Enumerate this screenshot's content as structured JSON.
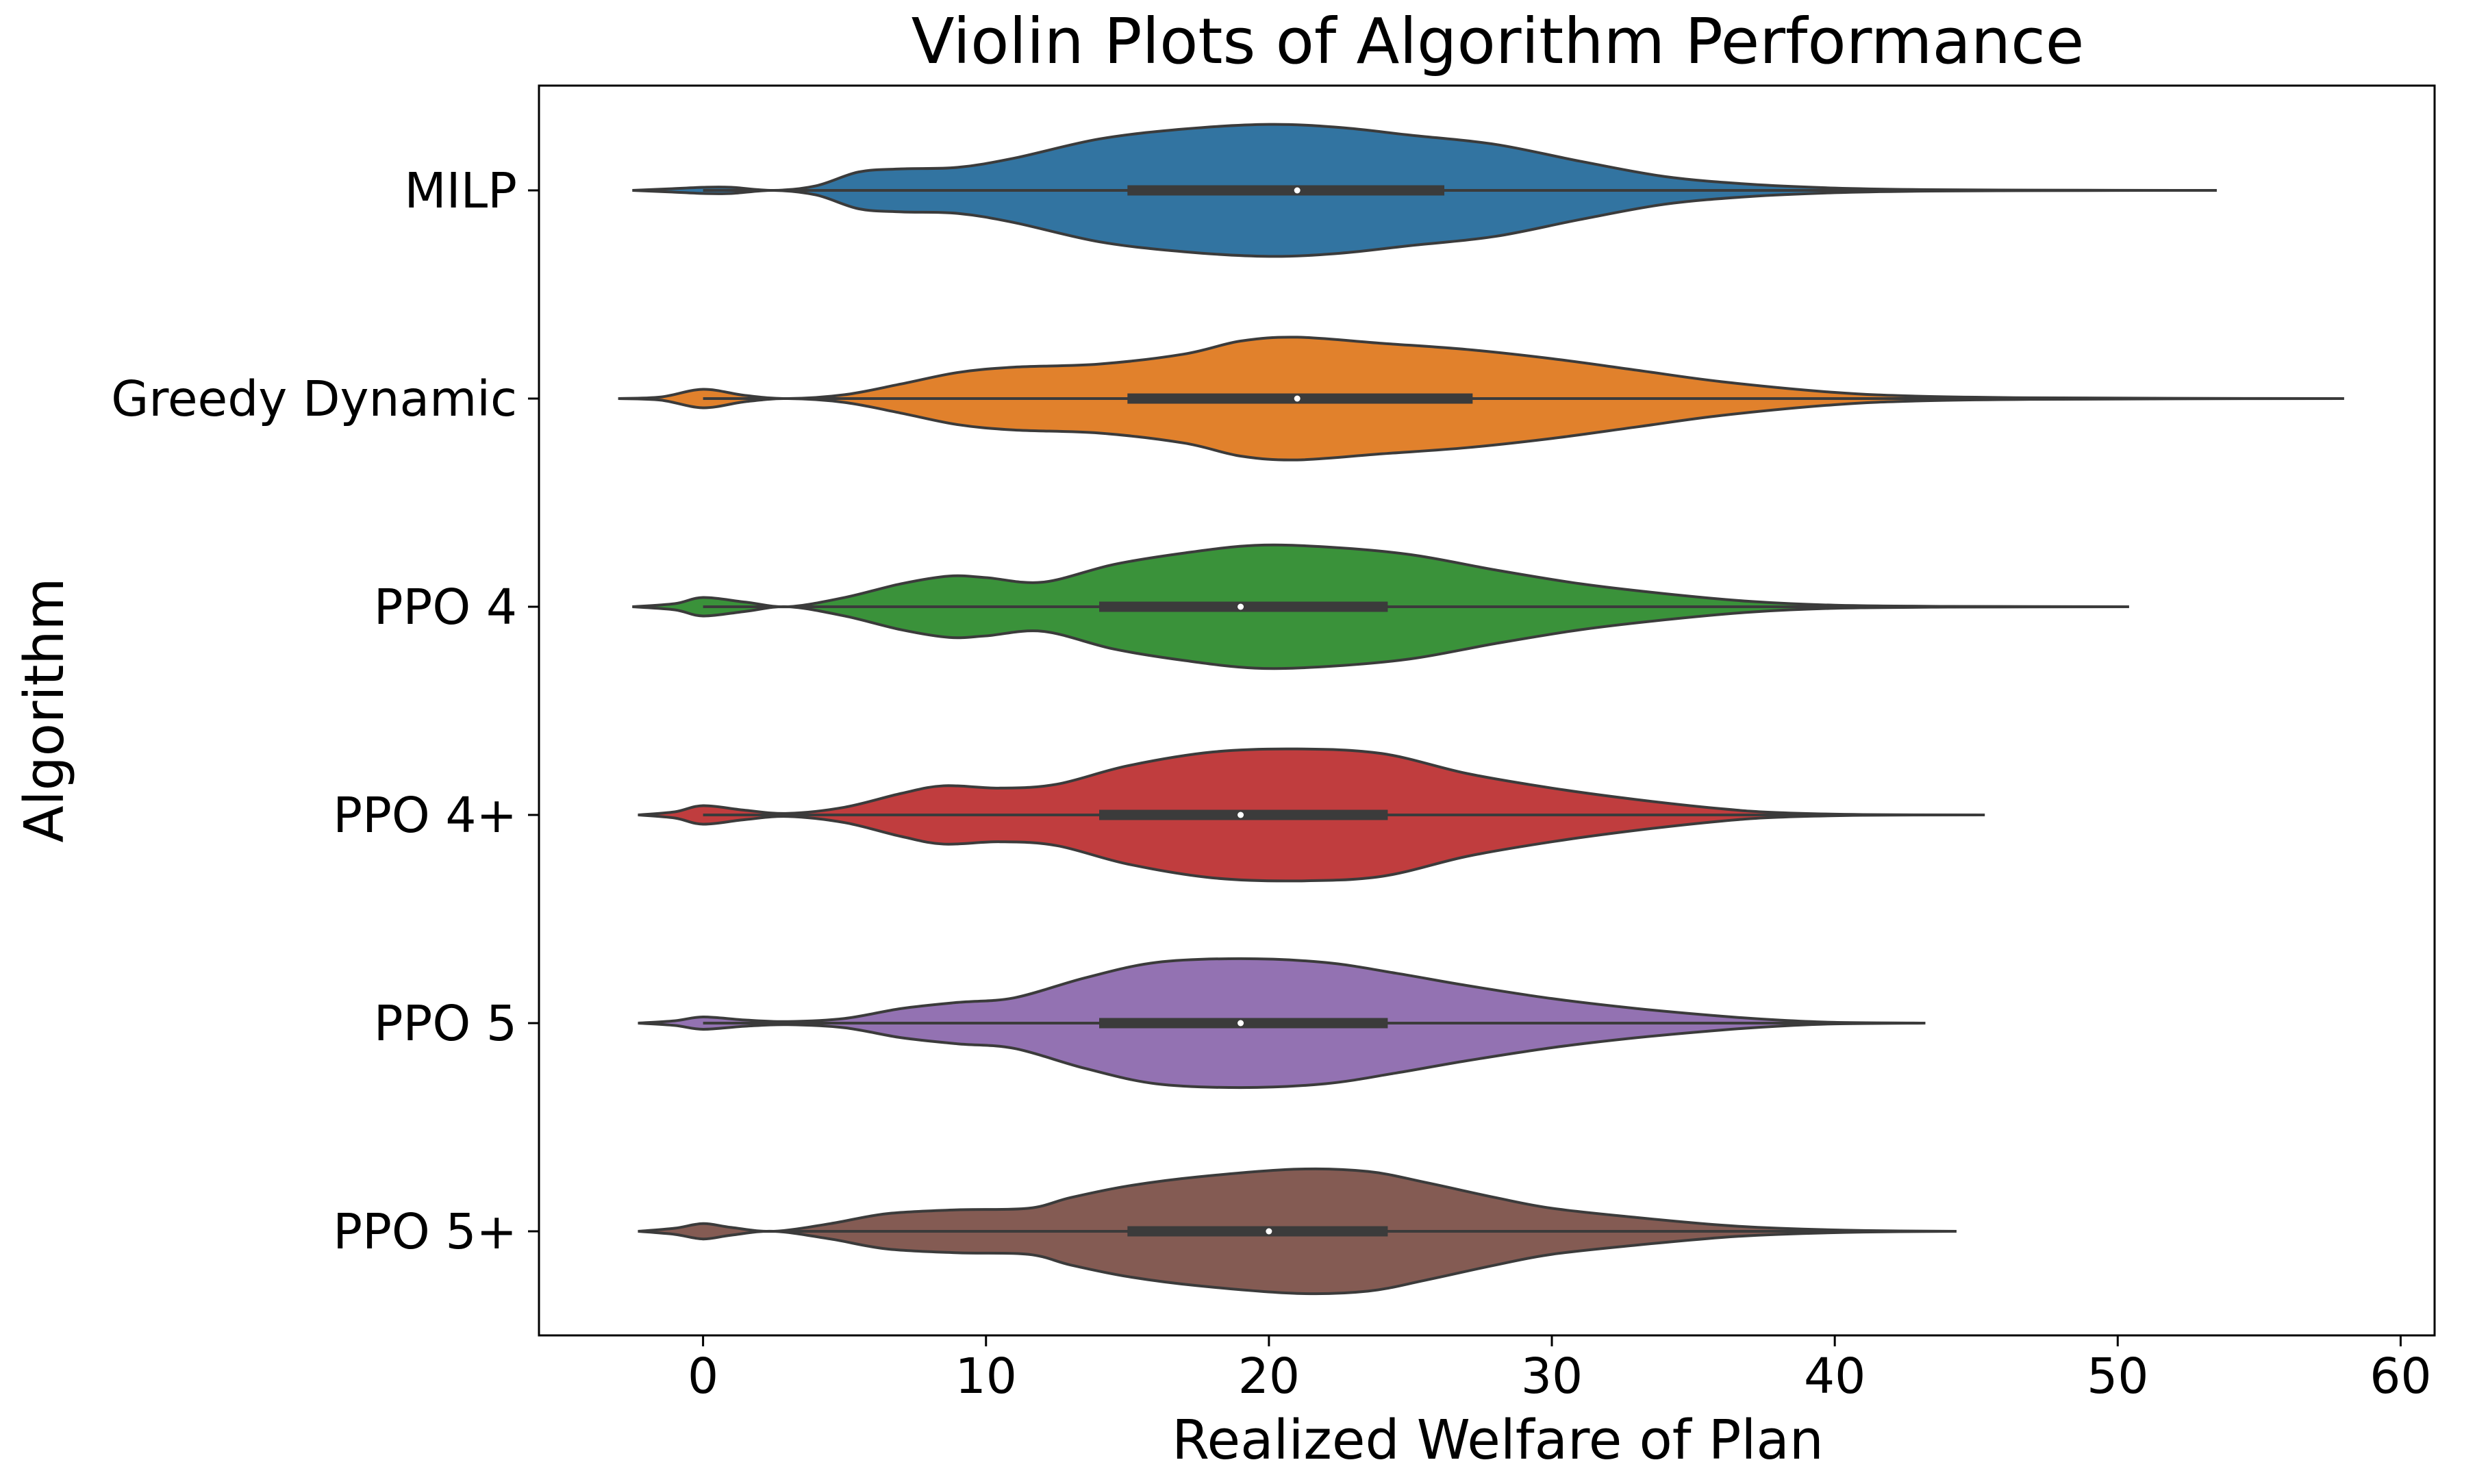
{
  "chart_data": {
    "type": "violin",
    "orientation": "horizontal",
    "title": "Violin Plots of Algorithm Performance",
    "xlabel": "Realized Welfare of Plan",
    "ylabel": "Algorithm",
    "xlim": [
      -5.8,
      61.2
    ],
    "xticks": [
      0,
      10,
      20,
      30,
      40,
      50,
      60
    ],
    "grid": false,
    "categories": [
      "MILP",
      "Greedy Dynamic",
      "PPO 4",
      "PPO 4+",
      "PPO 5",
      "PPO 5+"
    ],
    "series": [
      {
        "name": "MILP",
        "color": "#3274a1",
        "min": 0,
        "q1": 15,
        "median": 21,
        "q3": 26.2,
        "max": 53.5,
        "density": [
          [
            -2.5,
            0.0
          ],
          [
            -1.2,
            0.02
          ],
          [
            0.0,
            0.04
          ],
          [
            1.0,
            0.04
          ],
          [
            2.5,
            0.0
          ],
          [
            4.0,
            0.06
          ],
          [
            5.5,
            0.24
          ],
          [
            7.0,
            0.28
          ],
          [
            9.0,
            0.3
          ],
          [
            11.0,
            0.42
          ],
          [
            14.0,
            0.67
          ],
          [
            17.0,
            0.8
          ],
          [
            20.0,
            0.86
          ],
          [
            22.5,
            0.82
          ],
          [
            25.0,
            0.72
          ],
          [
            28.0,
            0.6
          ],
          [
            31.0,
            0.38
          ],
          [
            34.0,
            0.18
          ],
          [
            37.0,
            0.08
          ],
          [
            40.0,
            0.03
          ],
          [
            43.0,
            0.01
          ],
          [
            47.0,
            0.003
          ],
          [
            53.5,
            0.0
          ]
        ]
      },
      {
        "name": "Greedy Dynamic",
        "color": "#e1812c",
        "min": 0,
        "q1": 15,
        "median": 21,
        "q3": 27.2,
        "max": 58,
        "density": [
          [
            -3.0,
            0.0
          ],
          [
            -1.5,
            0.02
          ],
          [
            0.0,
            0.12
          ],
          [
            1.5,
            0.04
          ],
          [
            3.0,
            0.0
          ],
          [
            5.0,
            0.05
          ],
          [
            7.0,
            0.19
          ],
          [
            9.0,
            0.34
          ],
          [
            11.0,
            0.41
          ],
          [
            14.0,
            0.45
          ],
          [
            17.0,
            0.58
          ],
          [
            19.0,
            0.75
          ],
          [
            21.0,
            0.8
          ],
          [
            24.0,
            0.72
          ],
          [
            27.0,
            0.64
          ],
          [
            30.0,
            0.52
          ],
          [
            33.0,
            0.37
          ],
          [
            36.0,
            0.22
          ],
          [
            40.0,
            0.08
          ],
          [
            43.0,
            0.03
          ],
          [
            47.0,
            0.01
          ],
          [
            52.0,
            0.003
          ],
          [
            58.0,
            0.0
          ]
        ]
      },
      {
        "name": "PPO 4",
        "color": "#3a923a",
        "min": 0,
        "q1": 14,
        "median": 19,
        "q3": 24.2,
        "max": 50.4,
        "density": [
          [
            -2.5,
            0.0
          ],
          [
            -1.0,
            0.04
          ],
          [
            0.0,
            0.12
          ],
          [
            1.5,
            0.06
          ],
          [
            3.0,
            0.0
          ],
          [
            5.0,
            0.12
          ],
          [
            7.0,
            0.3
          ],
          [
            8.7,
            0.4
          ],
          [
            10.0,
            0.38
          ],
          [
            12.0,
            0.32
          ],
          [
            14.5,
            0.55
          ],
          [
            17.0,
            0.7
          ],
          [
            19.5,
            0.8
          ],
          [
            22.0,
            0.78
          ],
          [
            25.0,
            0.68
          ],
          [
            28.0,
            0.48
          ],
          [
            31.0,
            0.3
          ],
          [
            34.0,
            0.17
          ],
          [
            37.0,
            0.07
          ],
          [
            40.0,
            0.02
          ],
          [
            44.0,
            0.005
          ],
          [
            50.4,
            0.0
          ]
        ]
      },
      {
        "name": "PPO 4+",
        "color": "#c03d3e",
        "min": 0,
        "q1": 14,
        "median": 19,
        "q3": 24.2,
        "max": 45.3,
        "density": [
          [
            -2.3,
            0.0
          ],
          [
            -1.0,
            0.04
          ],
          [
            0.0,
            0.12
          ],
          [
            1.5,
            0.06
          ],
          [
            3.0,
            0.02
          ],
          [
            5.0,
            0.1
          ],
          [
            7.0,
            0.28
          ],
          [
            8.5,
            0.38
          ],
          [
            10.5,
            0.35
          ],
          [
            12.5,
            0.4
          ],
          [
            15.0,
            0.64
          ],
          [
            18.0,
            0.82
          ],
          [
            21.0,
            0.86
          ],
          [
            24.0,
            0.8
          ],
          [
            27.0,
            0.54
          ],
          [
            30.0,
            0.35
          ],
          [
            33.0,
            0.2
          ],
          [
            36.0,
            0.08
          ],
          [
            38.0,
            0.03
          ],
          [
            41.0,
            0.005
          ],
          [
            45.3,
            0.0
          ]
        ]
      },
      {
        "name": "PPO 5",
        "color": "#9372b2",
        "min": 0,
        "q1": 14,
        "median": 19,
        "q3": 24.2,
        "max": 43.2,
        "density": [
          [
            -2.3,
            0.0
          ],
          [
            -1.0,
            0.03
          ],
          [
            0.0,
            0.08
          ],
          [
            1.5,
            0.04
          ],
          [
            3.0,
            0.02
          ],
          [
            5.0,
            0.06
          ],
          [
            7.0,
            0.19
          ],
          [
            9.0,
            0.27
          ],
          [
            11.0,
            0.33
          ],
          [
            13.5,
            0.59
          ],
          [
            16.0,
            0.79
          ],
          [
            19.0,
            0.84
          ],
          [
            22.0,
            0.79
          ],
          [
            24.5,
            0.65
          ],
          [
            27.0,
            0.49
          ],
          [
            30.0,
            0.32
          ],
          [
            33.0,
            0.19
          ],
          [
            36.0,
            0.09
          ],
          [
            38.0,
            0.04
          ],
          [
            40.0,
            0.01
          ],
          [
            43.2,
            0.0
          ]
        ]
      },
      {
        "name": "PPO 5+",
        "color": "#845b53",
        "min": 2,
        "q1": 15,
        "median": 20,
        "q3": 24.2,
        "max": 44.3,
        "density": [
          [
            -2.3,
            0.0
          ],
          [
            -1.0,
            0.04
          ],
          [
            0.0,
            0.1
          ],
          [
            1.0,
            0.05
          ],
          [
            2.5,
            0.0
          ],
          [
            4.5,
            0.1
          ],
          [
            6.5,
            0.23
          ],
          [
            9.0,
            0.28
          ],
          [
            11.5,
            0.3
          ],
          [
            13.0,
            0.44
          ],
          [
            15.0,
            0.59
          ],
          [
            17.5,
            0.71
          ],
          [
            21.0,
            0.81
          ],
          [
            23.5,
            0.78
          ],
          [
            25.5,
            0.64
          ],
          [
            28.0,
            0.44
          ],
          [
            30.0,
            0.3
          ],
          [
            33.0,
            0.18
          ],
          [
            36.0,
            0.08
          ],
          [
            38.0,
            0.04
          ],
          [
            41.0,
            0.01
          ],
          [
            44.3,
            0.0
          ]
        ]
      }
    ]
  }
}
